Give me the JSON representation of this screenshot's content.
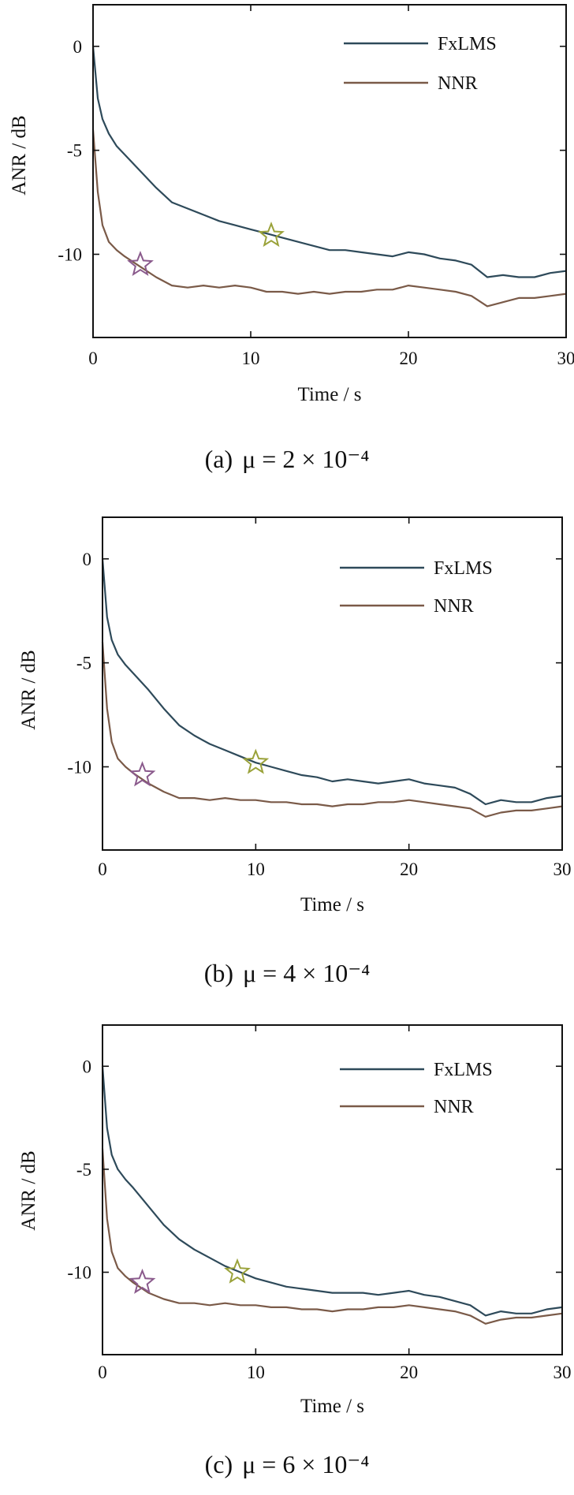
{
  "chart_data": [
    {
      "type": "line",
      "caption": "(a)",
      "caption_math": "μ = 2 × 10⁻⁴",
      "xlabel": "Time / s",
      "ylabel": "ANR / dB",
      "xlim": [
        0,
        30
      ],
      "ylim": [
        -14,
        2
      ],
      "xticks": [
        "0",
        "10",
        "20",
        "30"
      ],
      "yticks": [
        "0",
        "-5",
        "-10"
      ],
      "legend_position": "top-right",
      "grid": false,
      "series": [
        {
          "name": "FxLMS",
          "color": "#2e4a5a",
          "x": [
            0,
            0.3,
            0.6,
            1,
            1.5,
            2,
            3,
            4,
            5,
            6,
            7,
            8,
            9,
            10,
            11,
            12,
            13,
            14,
            15,
            16,
            17,
            18,
            19,
            20,
            21,
            22,
            23,
            24,
            25,
            26,
            27,
            28,
            29,
            30
          ],
          "y": [
            0,
            -2.5,
            -3.5,
            -4.2,
            -4.8,
            -5.2,
            -6.0,
            -6.8,
            -7.5,
            -7.8,
            -8.1,
            -8.4,
            -8.6,
            -8.8,
            -9.0,
            -9.2,
            -9.4,
            -9.6,
            -9.8,
            -9.8,
            -9.9,
            -10.0,
            -10.1,
            -9.9,
            -10.0,
            -10.2,
            -10.3,
            -10.5,
            -11.1,
            -11.0,
            -11.1,
            -11.1,
            -10.9,
            -10.8
          ]
        },
        {
          "name": "NNR",
          "color": "#7a5a48",
          "x": [
            0,
            0.3,
            0.6,
            1,
            1.5,
            2,
            3,
            4,
            5,
            6,
            7,
            8,
            9,
            10,
            11,
            12,
            13,
            14,
            15,
            16,
            17,
            18,
            19,
            20,
            21,
            22,
            23,
            24,
            25,
            26,
            27,
            28,
            29,
            30
          ],
          "y": [
            -4,
            -7.0,
            -8.6,
            -9.4,
            -9.8,
            -10.1,
            -10.6,
            -11.1,
            -11.5,
            -11.6,
            -11.5,
            -11.6,
            -11.5,
            -11.6,
            -11.8,
            -11.8,
            -11.9,
            -11.8,
            -11.9,
            -11.8,
            -11.8,
            -11.7,
            -11.7,
            -11.5,
            -11.6,
            -11.7,
            -11.8,
            -12.0,
            -12.5,
            -12.3,
            -12.1,
            -12.1,
            -12.0,
            -11.9
          ]
        }
      ],
      "annotations": [
        {
          "type": "star",
          "color": "#8a5a8c",
          "x": 3.0,
          "y": -10.5
        },
        {
          "type": "star",
          "color": "#9aa23a",
          "x": 11.3,
          "y": -9.1
        }
      ]
    },
    {
      "type": "line",
      "caption": "(b)",
      "caption_math": "μ = 4 × 10⁻⁴",
      "xlabel": "Time / s",
      "ylabel": "ANR / dB",
      "xlim": [
        0,
        30
      ],
      "ylim": [
        -14,
        2
      ],
      "xticks": [
        "0",
        "10",
        "20",
        "30"
      ],
      "yticks": [
        "0",
        "-5",
        "-10"
      ],
      "legend_position": "top-right",
      "grid": false,
      "series": [
        {
          "name": "FxLMS",
          "color": "#2e4a5a",
          "x": [
            0,
            0.3,
            0.6,
            1,
            1.5,
            2,
            3,
            4,
            5,
            6,
            7,
            8,
            9,
            10,
            11,
            12,
            13,
            14,
            15,
            16,
            17,
            18,
            19,
            20,
            21,
            22,
            23,
            24,
            25,
            26,
            27,
            28,
            29,
            30
          ],
          "y": [
            0,
            -2.8,
            -3.9,
            -4.6,
            -5.1,
            -5.5,
            -6.3,
            -7.2,
            -8.0,
            -8.5,
            -8.9,
            -9.2,
            -9.5,
            -9.8,
            -10.0,
            -10.2,
            -10.4,
            -10.5,
            -10.7,
            -10.6,
            -10.7,
            -10.8,
            -10.7,
            -10.6,
            -10.8,
            -10.9,
            -11.0,
            -11.3,
            -11.8,
            -11.6,
            -11.7,
            -11.7,
            -11.5,
            -11.4
          ]
        },
        {
          "name": "NNR",
          "color": "#7a5a48",
          "x": [
            0,
            0.3,
            0.6,
            1,
            1.5,
            2,
            3,
            4,
            5,
            6,
            7,
            8,
            9,
            10,
            11,
            12,
            13,
            14,
            15,
            16,
            17,
            18,
            19,
            20,
            21,
            22,
            23,
            24,
            25,
            26,
            27,
            28,
            29,
            30
          ],
          "y": [
            -4,
            -7.2,
            -8.8,
            -9.6,
            -10.0,
            -10.3,
            -10.8,
            -11.2,
            -11.5,
            -11.5,
            -11.6,
            -11.5,
            -11.6,
            -11.6,
            -11.7,
            -11.7,
            -11.8,
            -11.8,
            -11.9,
            -11.8,
            -11.8,
            -11.7,
            -11.7,
            -11.6,
            -11.7,
            -11.8,
            -11.9,
            -12.0,
            -12.4,
            -12.2,
            -12.1,
            -12.1,
            -12.0,
            -11.9
          ]
        }
      ],
      "annotations": [
        {
          "type": "star",
          "color": "#8a5a8c",
          "x": 2.6,
          "y": -10.4
        },
        {
          "type": "star",
          "color": "#9aa23a",
          "x": 10.0,
          "y": -9.8
        }
      ]
    },
    {
      "type": "line",
      "caption": "(c)",
      "caption_math": "μ = 6 × 10⁻⁴",
      "xlabel": "Time / s",
      "ylabel": "ANR / dB",
      "xlim": [
        0,
        30
      ],
      "ylim": [
        -14,
        2
      ],
      "xticks": [
        "0",
        "10",
        "20",
        "30"
      ],
      "yticks": [
        "0",
        "-5",
        "-10"
      ],
      "legend_position": "top-right",
      "grid": false,
      "series": [
        {
          "name": "FxLMS",
          "color": "#2e4a5a",
          "x": [
            0,
            0.3,
            0.6,
            1,
            1.5,
            2,
            3,
            4,
            5,
            6,
            7,
            8,
            9,
            10,
            11,
            12,
            13,
            14,
            15,
            16,
            17,
            18,
            19,
            20,
            21,
            22,
            23,
            24,
            25,
            26,
            27,
            28,
            29,
            30
          ],
          "y": [
            0,
            -3.0,
            -4.3,
            -5.0,
            -5.5,
            -5.9,
            -6.8,
            -7.7,
            -8.4,
            -8.9,
            -9.3,
            -9.7,
            -10.0,
            -10.3,
            -10.5,
            -10.7,
            -10.8,
            -10.9,
            -11.0,
            -11.0,
            -11.0,
            -11.1,
            -11.0,
            -10.9,
            -11.1,
            -11.2,
            -11.4,
            -11.6,
            -12.1,
            -11.9,
            -12.0,
            -12.0,
            -11.8,
            -11.7
          ]
        },
        {
          "name": "NNR",
          "color": "#7a5a48",
          "x": [
            0,
            0.3,
            0.6,
            1,
            1.5,
            2,
            3,
            4,
            5,
            6,
            7,
            8,
            9,
            10,
            11,
            12,
            13,
            14,
            15,
            16,
            17,
            18,
            19,
            20,
            21,
            22,
            23,
            24,
            25,
            26,
            27,
            28,
            29,
            30
          ],
          "y": [
            -4,
            -7.4,
            -9.0,
            -9.8,
            -10.2,
            -10.5,
            -11.0,
            -11.3,
            -11.5,
            -11.5,
            -11.6,
            -11.5,
            -11.6,
            -11.6,
            -11.7,
            -11.7,
            -11.8,
            -11.8,
            -11.9,
            -11.8,
            -11.8,
            -11.7,
            -11.7,
            -11.6,
            -11.7,
            -11.8,
            -11.9,
            -12.1,
            -12.5,
            -12.3,
            -12.2,
            -12.2,
            -12.1,
            -12.0
          ]
        }
      ],
      "annotations": [
        {
          "type": "star",
          "color": "#8a5a8c",
          "x": 2.6,
          "y": -10.5
        },
        {
          "type": "star",
          "color": "#9aa23a",
          "x": 8.8,
          "y": -10.0
        }
      ]
    }
  ]
}
